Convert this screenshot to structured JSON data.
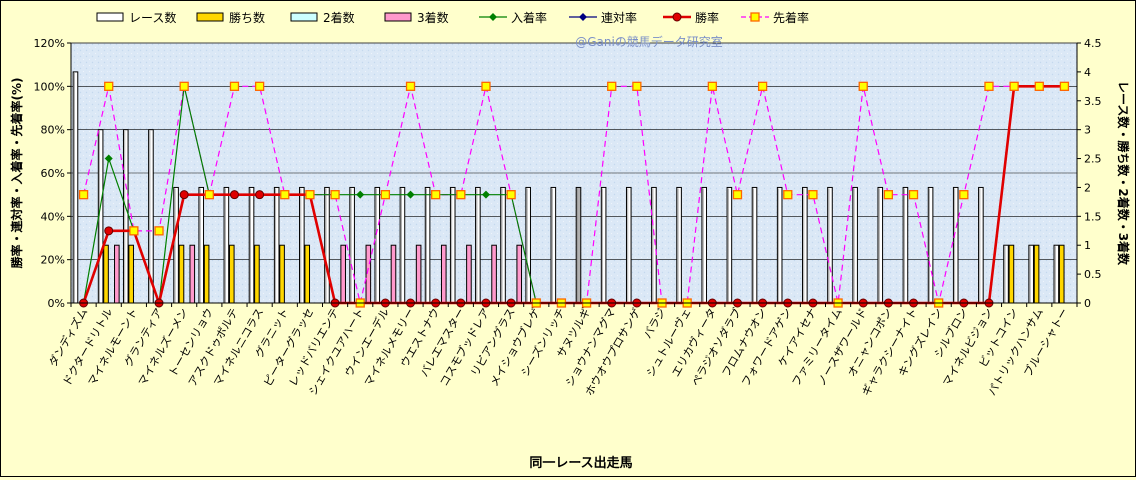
{
  "chart_data": {
    "type": "bar",
    "title": "",
    "watermark": "@Ganiの競馬データ研究室",
    "xlabel": "同一レース出走馬",
    "ylabel_left": "勝率・連対率・入着率・先着率(%)",
    "ylabel_right": "レース数・勝ち数・2着数・3着数",
    "ylim_left": [
      0,
      120
    ],
    "ylim_right": [
      0,
      4.5
    ],
    "yticks_left": [
      "0%",
      "20%",
      "40%",
      "60%",
      "80%",
      "100%",
      "120%"
    ],
    "yticks_right": [
      "0",
      "0.5",
      "1",
      "1.5",
      "2",
      "2.5",
      "3",
      "3.5",
      "4",
      "4.5"
    ],
    "legend_position": "top",
    "grid": true,
    "colors": {
      "plot_bg": "#dde9f7",
      "race": "#ffffff",
      "race_gray": "#b0b0b0",
      "win": "#ffd700",
      "second": "#ccffff",
      "third": "#ff99cc",
      "place_rate": "#008000",
      "rentai_rate": "#000080",
      "win_rate": "#e00000",
      "senchaku_rate": "#ff00ff",
      "senchaku_marker": "#ffff00"
    },
    "categories": [
      "ダンディズム",
      "ドクタードリトル",
      "マイネルモーント",
      "グランティア",
      "マイネルズーメン",
      "トーセンリョウ",
      "アスクドゥポルテ",
      "マイネルニコラス",
      "グラニット",
      "ピーターグラッセ",
      "レッドバリエンテ",
      "シェイクユアハート",
      "ウインエーデル",
      "マイネルメモリー",
      "ウエストナウ",
      "バレエマスター",
      "コスモブッドレア",
      "リビアングラス",
      "メイショウブレゲ",
      "シーズンリッチ",
      "サヌツルギ",
      "ショウナンマグマ",
      "ホウオウプロサンゲ",
      "バラジ",
      "シュトルーヴェ",
      "エリカヴィータ",
      "ペラジオソダラブ",
      "フロムナウオン",
      "フォワードアゲン",
      "ケイアイセナ",
      "ファミリータイム",
      "ノースザワールド",
      "オニャンコポン",
      "ギャラクシーナイト",
      "キングズレイン",
      "シルブロン",
      "マイネルビジョン",
      "ビットコイン",
      "パトリックハンサム",
      "ブルーシャトー"
    ],
    "series": [
      {
        "name": "レース数",
        "type": "bar",
        "axis": "right",
        "values": [
          4,
          3,
          3,
          3,
          2,
          2,
          2,
          2,
          2,
          2,
          2,
          2,
          2,
          2,
          2,
          2,
          2,
          2,
          2,
          2,
          2,
          2,
          2,
          2,
          2,
          2,
          2,
          2,
          2,
          2,
          2,
          2,
          2,
          2,
          2,
          2,
          2,
          1,
          1,
          1
        ]
      },
      {
        "name": "勝ち数",
        "type": "bar",
        "axis": "right",
        "values": [
          0,
          1,
          1,
          0,
          1,
          1,
          1,
          1,
          1,
          1,
          0,
          0,
          0,
          0,
          0,
          0,
          0,
          0,
          0,
          0,
          0,
          0,
          0,
          0,
          0,
          0,
          0,
          0,
          0,
          0,
          0,
          0,
          0,
          0,
          0,
          0,
          0,
          1,
          1,
          1
        ]
      },
      {
        "name": "2着数",
        "type": "bar",
        "axis": "right",
        "values": [
          0,
          0,
          0,
          0,
          0,
          0,
          0,
          0,
          0,
          0,
          0,
          0,
          0,
          0,
          0,
          0,
          0,
          0,
          0,
          0,
          0,
          0,
          0,
          0,
          0,
          0,
          0,
          0,
          0,
          0,
          0,
          0,
          0,
          0,
          0,
          0,
          0,
          0,
          0,
          0
        ]
      },
      {
        "name": "3着数",
        "type": "bar",
        "axis": "right",
        "values": [
          0,
          1,
          0,
          0,
          1,
          0,
          0,
          0,
          0,
          0,
          1,
          1,
          1,
          1,
          1,
          1,
          1,
          1,
          0,
          0,
          0,
          0,
          0,
          0,
          0,
          0,
          0,
          0,
          0,
          0,
          0,
          0,
          0,
          0,
          0,
          0,
          0,
          0,
          0,
          0
        ]
      },
      {
        "name": "入着率",
        "type": "line",
        "axis": "left",
        "values": [
          0,
          66.7,
          33.3,
          0,
          100,
          50,
          50,
          50,
          50,
          50,
          50,
          50,
          50,
          50,
          50,
          50,
          50,
          50,
          0,
          0,
          0,
          0,
          0,
          0,
          0,
          0,
          0,
          0,
          0,
          0,
          0,
          0,
          0,
          0,
          0,
          0,
          0,
          100,
          100,
          100
        ]
      },
      {
        "name": "連対率",
        "type": "line",
        "axis": "left",
        "values": [
          0,
          33.3,
          33.3,
          0,
          50,
          50,
          50,
          50,
          50,
          50,
          0,
          0,
          0,
          0,
          0,
          0,
          0,
          0,
          0,
          0,
          0,
          0,
          0,
          0,
          0,
          0,
          0,
          0,
          0,
          0,
          0,
          0,
          0,
          0,
          0,
          0,
          0,
          100,
          100,
          100
        ]
      },
      {
        "name": "勝率",
        "type": "line",
        "axis": "left",
        "values": [
          0,
          33.3,
          33.3,
          0,
          50,
          50,
          50,
          50,
          50,
          50,
          0,
          0,
          0,
          0,
          0,
          0,
          0,
          0,
          0,
          0,
          0,
          0,
          0,
          0,
          0,
          0,
          0,
          0,
          0,
          0,
          0,
          0,
          0,
          0,
          0,
          0,
          0,
          100,
          100,
          100
        ]
      },
      {
        "name": "先着率",
        "type": "line",
        "axis": "left",
        "values": [
          50,
          100,
          33.3,
          33.3,
          100,
          50,
          100,
          100,
          50,
          50,
          50,
          0,
          50,
          100,
          50,
          50,
          100,
          50,
          0,
          0,
          0,
          100,
          100,
          0,
          0,
          100,
          50,
          100,
          50,
          50,
          0,
          100,
          50,
          50,
          0,
          50,
          100,
          100,
          100,
          100
        ]
      }
    ],
    "gray_race_bar_index": 20
  }
}
